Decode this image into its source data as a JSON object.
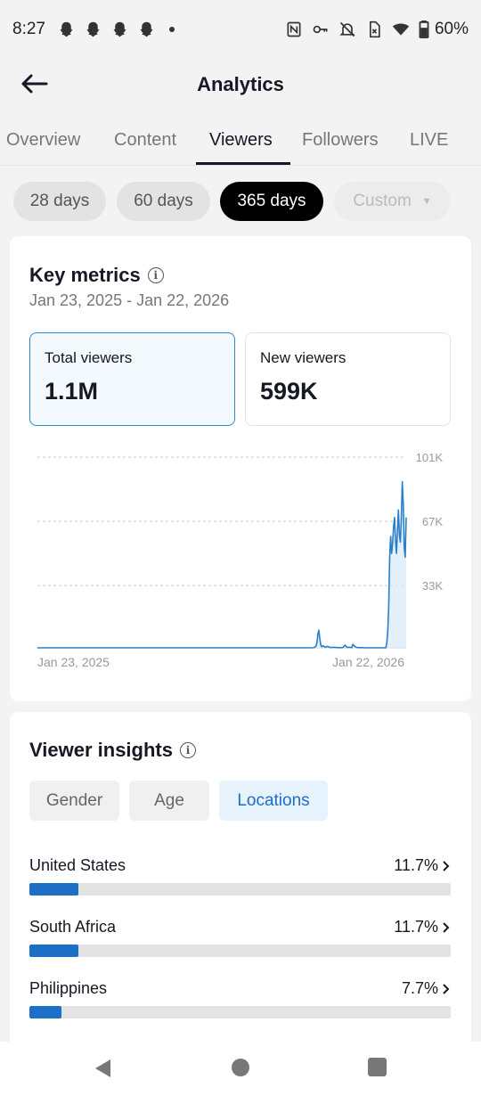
{
  "status": {
    "time": "8:27",
    "battery": "60%"
  },
  "header": {
    "title": "Analytics"
  },
  "tabs": [
    "Overview",
    "Content",
    "Viewers",
    "Followers",
    "LIVE"
  ],
  "periods": [
    "28 days",
    "60 days",
    "365 days",
    "Custom"
  ],
  "key_metrics": {
    "title": "Key metrics",
    "date_range": "Jan 23, 2025 - Jan 22, 2026",
    "total_viewers_label": "Total viewers",
    "total_viewers_value": "1.1M",
    "new_viewers_label": "New viewers",
    "new_viewers_value": "599K"
  },
  "chart_data": {
    "type": "line",
    "x_start_label": "Jan 23, 2025",
    "x_end_label": "Jan 22, 2026",
    "y_ticks": [
      "101K",
      "67K",
      "33K"
    ],
    "ylim": [
      0,
      101000
    ],
    "grid": true,
    "series": [
      {
        "values": [
          0,
          0,
          0,
          0,
          0,
          0,
          0,
          0,
          0,
          0,
          0,
          0,
          0,
          0,
          0,
          0,
          0,
          0,
          0,
          0,
          0,
          0,
          0,
          0,
          0,
          0,
          0,
          0,
          0,
          0,
          0,
          0,
          0,
          0,
          0,
          0,
          0,
          0,
          0,
          0,
          0,
          0,
          0,
          0,
          0,
          0,
          0,
          0,
          0,
          0,
          0,
          0,
          0,
          0,
          0,
          0,
          0,
          0,
          0,
          0,
          0,
          0,
          0,
          0,
          0,
          0,
          0,
          0,
          0,
          0,
          0,
          0,
          0,
          0,
          0,
          0,
          0,
          0,
          0,
          0,
          0,
          0,
          0,
          0,
          0,
          0,
          0,
          0,
          0,
          0,
          0,
          0,
          0,
          0,
          0,
          0,
          0,
          0,
          0,
          0,
          0,
          0,
          0,
          0,
          0,
          0,
          0,
          0,
          0,
          0,
          0,
          0,
          0,
          0,
          0,
          0,
          0,
          0,
          0,
          0,
          0,
          0,
          0,
          0,
          0,
          0,
          0,
          0,
          0,
          0,
          0,
          0,
          0,
          0,
          0,
          0,
          0,
          0,
          0,
          0,
          0,
          0,
          0,
          0,
          0,
          0,
          0,
          0,
          0,
          0,
          0,
          0,
          0,
          0,
          0,
          0,
          0,
          0,
          0,
          0,
          0,
          0,
          0,
          0,
          0,
          0,
          0,
          0,
          0,
          0,
          0,
          0,
          0,
          0,
          0,
          0,
          0,
          0,
          0,
          0,
          0,
          0,
          0,
          0,
          0,
          0,
          0,
          0,
          0,
          0,
          0,
          0,
          0,
          0,
          0,
          0,
          0,
          0,
          0,
          0,
          0,
          0,
          0,
          0,
          0,
          0,
          0,
          0,
          0,
          0,
          0,
          0,
          0,
          0,
          0,
          0,
          0,
          0,
          0,
          0,
          0,
          0,
          0,
          0,
          0,
          0,
          0,
          0,
          0,
          0,
          0,
          0,
          0,
          0,
          0,
          0,
          0,
          0,
          0,
          0,
          0,
          0,
          0,
          0,
          0,
          0,
          0,
          0,
          0,
          0,
          0,
          0,
          0,
          0,
          0,
          0,
          0,
          0,
          0,
          0,
          0,
          0,
          0,
          0,
          0,
          0,
          0,
          0,
          0,
          0,
          0,
          0,
          0,
          0,
          0,
          0,
          0,
          0,
          0,
          0,
          0,
          0,
          0,
          0,
          0,
          200,
          400,
          900,
          2600,
          7200,
          9300,
          4800,
          1500,
          600,
          1100,
          900,
          400,
          300,
          600,
          800,
          500,
          300,
          200,
          200,
          200,
          200,
          300,
          200,
          200,
          100,
          100,
          100,
          100,
          100,
          100,
          200,
          900,
          1400,
          800,
          300,
          200,
          300,
          200,
          200,
          100,
          1800,
          1300,
          800,
          500,
          200,
          100,
          100,
          100,
          100,
          100,
          100,
          0,
          0,
          0,
          0,
          0,
          0,
          0,
          0,
          0,
          0,
          0,
          0,
          0,
          0,
          0,
          0,
          0,
          0,
          0,
          0,
          0,
          0,
          0,
          0,
          2400,
          8600,
          22000,
          48000,
          59000,
          50000,
          55000,
          64000,
          69000,
          57000,
          50000,
          62000,
          73000,
          60000,
          56000,
          69000,
          88000,
          76000,
          53000,
          48000,
          69000
        ]
      }
    ]
  },
  "insights": {
    "title": "Viewer insights",
    "tabs": [
      "Gender",
      "Age",
      "Locations"
    ],
    "locations": [
      {
        "name": "United States",
        "pct": "11.7%",
        "fraction": 0.117
      },
      {
        "name": "South Africa",
        "pct": "11.7%",
        "fraction": 0.117
      },
      {
        "name": "Philippines",
        "pct": "7.7%",
        "fraction": 0.077
      }
    ]
  },
  "colors": {
    "accent": "#1d6fc5",
    "line": "#2a7fc9",
    "area": "#d7e9f7"
  }
}
